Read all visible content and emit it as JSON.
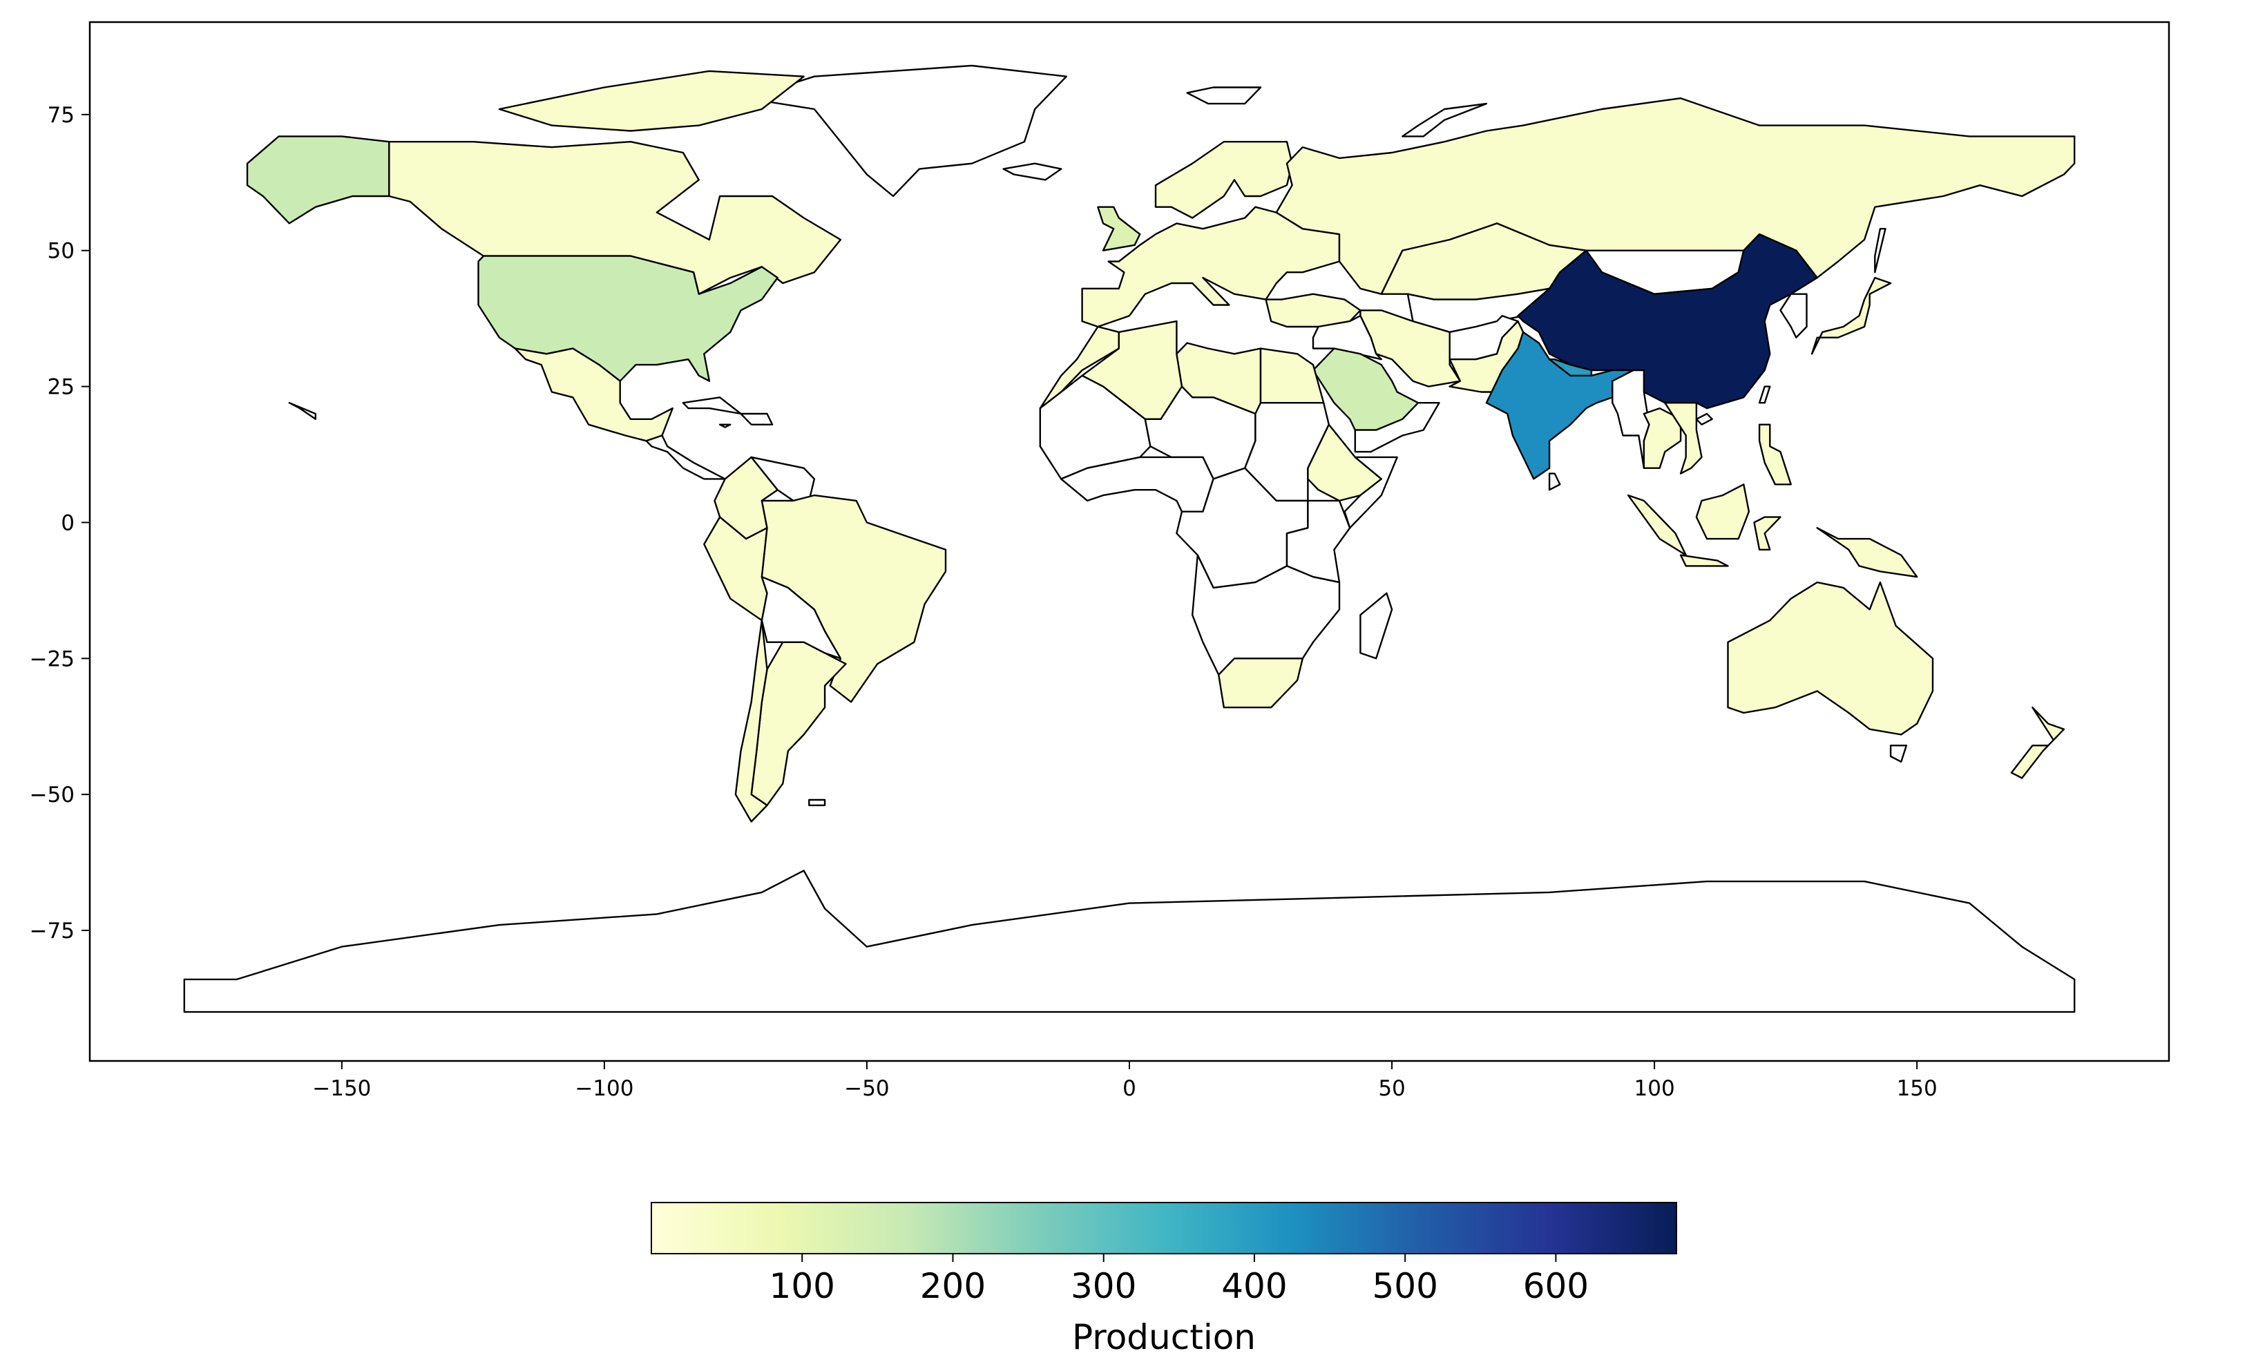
{
  "chart_data": {
    "type": "choropleth",
    "title": "",
    "xlabel": "",
    "ylabel": "",
    "xlim": [
      -198,
      198
    ],
    "ylim": [
      -99,
      92
    ],
    "x_ticks": [
      -150,
      -100,
      -50,
      0,
      50,
      100,
      150
    ],
    "y_ticks": [
      75,
      50,
      25,
      0,
      -25,
      -50,
      -75
    ],
    "x_tick_labels": [
      "−150",
      "−100",
      "−50",
      "0",
      "50",
      "100",
      "150"
    ],
    "y_tick_labels": [
      "75",
      "50",
      "25",
      "0",
      "−25",
      "−50",
      "−75"
    ],
    "grid": false,
    "colormap": "YlGnBu",
    "colorbar": {
      "placement": "bottom",
      "label": "Production",
      "range": [
        0,
        680
      ],
      "ticks": [
        100,
        200,
        300,
        400,
        500,
        600
      ],
      "tick_labels": [
        "100",
        "200",
        "300",
        "400",
        "500",
        "600"
      ],
      "stops": [
        "#ffffd9",
        "#edf8b1",
        "#c7e9b4",
        "#7fcdbb",
        "#41b6c4",
        "#1d91c0",
        "#225ea8",
        "#253494",
        "#081d58"
      ]
    },
    "regions": [
      {
        "name": "China",
        "value": 680
      },
      {
        "name": "India",
        "value": 430
      },
      {
        "name": "Nepal",
        "value": 400
      },
      {
        "name": "United States",
        "value": 160
      },
      {
        "name": "Alaska",
        "value": 160
      },
      {
        "name": "Saudi Arabia",
        "value": 150
      },
      {
        "name": "United Kingdom",
        "value": 120
      },
      {
        "name": "Russia",
        "value": 30
      },
      {
        "name": "Canada",
        "value": 30
      },
      {
        "name": "Brazil",
        "value": 30
      },
      {
        "name": "Australia",
        "value": 30
      },
      {
        "name": "Mexico",
        "value": 30
      },
      {
        "name": "Argentina",
        "value": 30
      },
      {
        "name": "Chile",
        "value": 30
      },
      {
        "name": "Kazakhstan",
        "value": 30
      },
      {
        "name": "Iran",
        "value": 30
      },
      {
        "name": "Algeria",
        "value": 30
      },
      {
        "name": "Libya",
        "value": 30
      },
      {
        "name": "Egypt",
        "value": 30
      },
      {
        "name": "Ethiopia",
        "value": 30
      },
      {
        "name": "South Africa",
        "value": 30
      },
      {
        "name": "Thailand",
        "value": 30
      },
      {
        "name": "Vietnam",
        "value": 30
      },
      {
        "name": "Japan",
        "value": 30
      },
      {
        "name": "Indonesia",
        "value": 30
      },
      {
        "name": "Philippines",
        "value": 30
      },
      {
        "name": "Papua New Guinea",
        "value": 30
      },
      {
        "name": "New Zealand",
        "value": 30
      },
      {
        "name": "Scandinavia",
        "value": 30
      },
      {
        "name": "Europe",
        "value": 30
      },
      {
        "name": "Colombia",
        "value": 30
      },
      {
        "name": "Peru",
        "value": 30
      },
      {
        "name": "Pakistan",
        "value": 30
      },
      {
        "name": "Turkey",
        "value": 30
      },
      {
        "name": "Morocco",
        "value": 30
      }
    ]
  }
}
